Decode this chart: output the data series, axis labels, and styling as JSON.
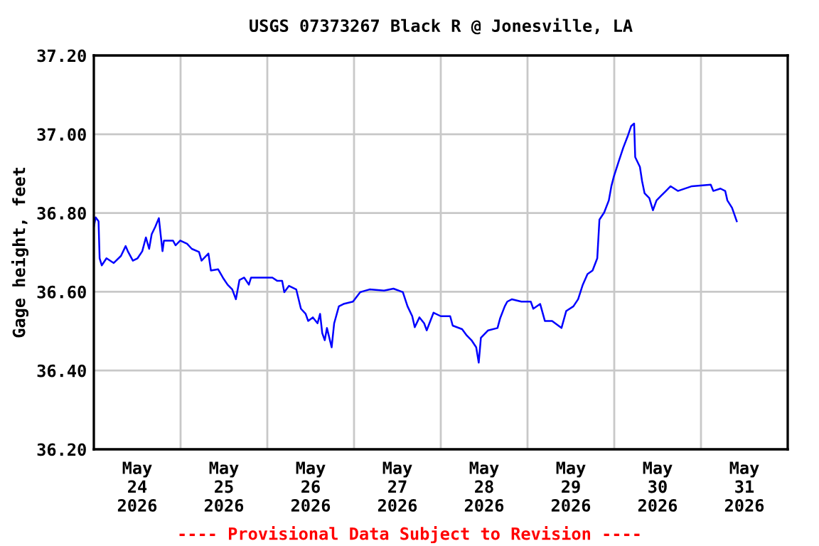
{
  "chart_data": {
    "type": "line",
    "title": "USGS 07373267 Black R @ Jonesville, LA",
    "ylabel": "Gage height, feet",
    "annotations": [
      "---- Provisional Data Subject to Revision ----"
    ],
    "xlim": [
      "2026-05-24T00:00",
      "2026-06-01T00:00"
    ],
    "xticks": [
      {
        "value": "2026-05-24T12:00",
        "label": "May\n24\n2026"
      },
      {
        "value": "2026-05-25T12:00",
        "label": "May\n25\n2026"
      },
      {
        "value": "2026-05-26T12:00",
        "label": "May\n26\n2026"
      },
      {
        "value": "2026-05-27T12:00",
        "label": "May\n27\n2026"
      },
      {
        "value": "2026-05-28T12:00",
        "label": "May\n28\n2026"
      },
      {
        "value": "2026-05-29T12:00",
        "label": "May\n29\n2026"
      },
      {
        "value": "2026-05-30T12:00",
        "label": "May\n30\n2026"
      },
      {
        "value": "2026-05-31T12:00",
        "label": "May\n31\n2026"
      },
      {
        "value": "2026-05-25T00:00",
        "label": null
      },
      {
        "value": "2026-05-26T00:00",
        "label": null
      },
      {
        "value": "2026-05-27T00:00",
        "label": null
      },
      {
        "value": "2026-05-28T00:00",
        "label": null
      },
      {
        "value": "2026-05-29T00:00",
        "label": null
      },
      {
        "value": "2026-05-30T00:00",
        "label": null
      },
      {
        "value": "2026-05-31T00:00",
        "label": null
      }
    ],
    "ylim": [
      36.2,
      37.2
    ],
    "yticks": [
      {
        "value": 36.2,
        "label": "36.20"
      },
      {
        "value": 36.4,
        "label": "36.40"
      },
      {
        "value": 36.6,
        "label": "36.60"
      },
      {
        "value": 36.8,
        "label": "36.80"
      },
      {
        "value": 37.0,
        "label": "37.00"
      },
      {
        "value": 37.2,
        "label": "37.20"
      }
    ],
    "grid": true,
    "line_style": "solid",
    "series": [
      {
        "color": "#0000ff",
        "x": [
          "2026-05-24T00:00",
          "2026-05-24T00:30",
          "2026-05-24T01:18",
          "2026-05-24T01:36",
          "2026-05-24T02:12",
          "2026-05-24T03:30",
          "2026-05-24T05:30",
          "2026-05-24T07:30",
          "2026-05-24T08:48",
          "2026-05-24T09:24",
          "2026-05-24T10:48",
          "2026-05-24T12:06",
          "2026-05-24T13:24",
          "2026-05-24T14:24",
          "2026-05-24T15:18",
          "2026-05-24T16:00",
          "2026-05-24T17:00",
          "2026-05-24T18:00",
          "2026-05-24T18:24",
          "2026-05-24T19:00",
          "2026-05-24T19:24",
          "2026-05-24T21:54",
          "2026-05-24T22:36",
          "2026-05-24T23:54",
          "2026-05-25T01:48",
          "2026-05-25T03:06",
          "2026-05-25T05:06",
          "2026-05-25T05:48",
          "2026-05-25T07:42",
          "2026-05-25T08:24",
          "2026-05-25T10:24",
          "2026-05-25T11:42",
          "2026-05-25T13:00",
          "2026-05-25T14:18",
          "2026-05-25T15:18",
          "2026-05-25T16:18",
          "2026-05-25T17:36",
          "2026-05-25T18:54",
          "2026-05-25T19:30",
          "2026-05-25T22:48",
          "2026-05-26T01:24",
          "2026-05-26T02:42",
          "2026-05-26T04:06",
          "2026-05-26T04:42",
          "2026-05-26T06:00",
          "2026-05-26T08:00",
          "2026-05-26T09:18",
          "2026-05-26T10:36",
          "2026-05-26T11:18",
          "2026-05-26T12:36",
          "2026-05-26T13:54",
          "2026-05-26T14:36",
          "2026-05-26T15:12",
          "2026-05-26T15:54",
          "2026-05-26T16:30",
          "2026-05-26T17:48",
          "2026-05-26T18:30",
          "2026-05-26T19:48",
          "2026-05-26T21:06",
          "2026-05-26T23:42",
          "2026-05-27T01:42",
          "2026-05-27T04:18",
          "2026-05-27T08:18",
          "2026-05-27T10:54",
          "2026-05-27T13:30",
          "2026-05-27T14:48",
          "2026-05-27T16:06",
          "2026-05-27T16:48",
          "2026-05-27T18:06",
          "2026-05-27T19:24",
          "2026-05-27T20:06",
          "2026-05-27T22:00",
          "2026-05-28T00:00",
          "2026-05-28T02:36",
          "2026-05-28T03:18",
          "2026-05-28T05:54",
          "2026-05-28T07:12",
          "2026-05-28T08:30",
          "2026-05-28T09:48",
          "2026-05-28T10:30",
          "2026-05-28T11:06",
          "2026-05-28T13:06",
          "2026-05-28T15:42",
          "2026-05-28T16:24",
          "2026-05-28T17:42",
          "2026-05-28T18:24",
          "2026-05-28T19:42",
          "2026-05-28T22:18",
          "2026-05-29T00:54",
          "2026-05-29T01:36",
          "2026-05-29T03:30",
          "2026-05-29T04:48",
          "2026-05-29T06:48",
          "2026-05-29T09:24",
          "2026-05-29T10:42",
          "2026-05-29T12:42",
          "2026-05-29T14:00",
          "2026-05-29T15:18",
          "2026-05-29T16:36",
          "2026-05-29T18:00",
          "2026-05-29T19:18",
          "2026-05-29T19:54",
          "2026-05-29T21:12",
          "2026-05-29T22:30",
          "2026-05-29T23:12",
          "2026-05-29T23:54",
          "2026-05-30T01:12",
          "2026-05-30T02:30",
          "2026-05-30T03:48",
          "2026-05-30T04:42",
          "2026-05-30T05:30",
          "2026-05-30T05:48",
          "2026-05-30T07:06",
          "2026-05-30T07:42",
          "2026-05-30T08:24",
          "2026-05-30T09:42",
          "2026-05-30T10:42",
          "2026-05-30T11:42",
          "2026-05-30T13:00",
          "2026-05-30T14:18",
          "2026-05-30T15:36",
          "2026-05-30T17:36",
          "2026-05-30T21:30",
          "2026-05-31T02:42",
          "2026-05-31T03:24",
          "2026-05-31T05:24",
          "2026-05-31T06:42",
          "2026-05-31T07:18",
          "2026-05-31T08:36",
          "2026-05-31T09:54"
        ],
        "values": [
          36.765,
          36.789,
          36.779,
          36.685,
          36.667,
          36.685,
          36.673,
          36.691,
          36.716,
          36.703,
          36.679,
          36.685,
          36.703,
          36.738,
          36.709,
          36.746,
          36.765,
          36.787,
          36.752,
          36.703,
          36.73,
          36.73,
          36.718,
          36.73,
          36.722,
          36.709,
          36.701,
          36.679,
          36.697,
          36.654,
          36.657,
          36.636,
          36.618,
          36.606,
          36.581,
          36.63,
          36.636,
          36.618,
          36.636,
          36.636,
          36.636,
          36.628,
          36.628,
          36.599,
          36.615,
          36.606,
          36.557,
          36.544,
          36.526,
          36.535,
          36.52,
          36.544,
          36.495,
          36.477,
          36.508,
          36.459,
          36.52,
          36.563,
          36.569,
          36.575,
          36.599,
          36.606,
          36.603,
          36.608,
          36.599,
          36.563,
          36.538,
          36.51,
          36.535,
          36.52,
          36.502,
          36.547,
          36.538,
          36.538,
          36.514,
          36.505,
          36.489,
          36.477,
          36.459,
          36.42,
          36.483,
          36.502,
          36.508,
          36.532,
          36.563,
          36.575,
          36.581,
          36.575,
          36.575,
          36.557,
          36.569,
          36.526,
          36.526,
          36.508,
          36.551,
          36.563,
          36.581,
          36.618,
          36.645,
          36.654,
          36.685,
          36.783,
          36.801,
          36.832,
          36.868,
          36.893,
          36.93,
          36.966,
          36.997,
          37.021,
          37.027,
          36.942,
          36.917,
          36.881,
          36.85,
          36.838,
          36.807,
          36.832,
          36.844,
          36.856,
          36.868,
          36.856,
          36.868,
          36.872,
          36.856,
          36.862,
          36.856,
          36.832,
          36.813,
          36.779
        ]
      }
    ]
  }
}
